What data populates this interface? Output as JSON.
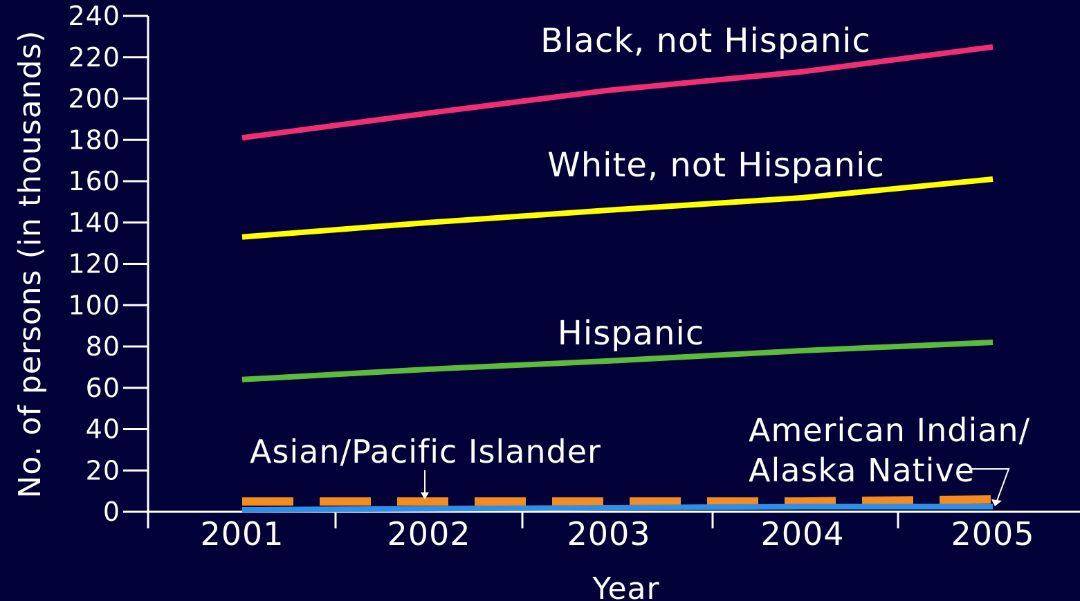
{
  "chart_data": {
    "type": "line",
    "xlabel": "Year",
    "ylabel": "No. of persons (in thousands)",
    "ylim": [
      0,
      240
    ],
    "y_ticks": [
      "0",
      "20",
      "40",
      "60",
      "80",
      "100",
      "120",
      "140",
      "160",
      "180",
      "200",
      "220",
      "240"
    ],
    "x": [
      "2001",
      "2002",
      "2003",
      "2004",
      "2005"
    ],
    "series": [
      {
        "name": "Black, not Hispanic",
        "values": [
          181,
          193,
          204,
          213,
          225
        ],
        "color": "#ef2f72",
        "style": "solid"
      },
      {
        "name": "White, not Hispanic",
        "values": [
          133,
          140,
          146,
          152,
          161
        ],
        "color": "#ffff00",
        "style": "solid"
      },
      {
        "name": "Hispanic",
        "values": [
          64,
          69,
          73,
          78,
          82
        ],
        "color": "#5dbb3b",
        "style": "solid"
      },
      {
        "name": "Asian/Pacific Islander",
        "values": [
          5,
          5,
          5,
          5,
          6
        ],
        "color": "#f58a1f",
        "style": "dashed"
      },
      {
        "name": "American Indian/ Alaska Native",
        "values": [
          1,
          1.5,
          2,
          2.5,
          2.5
        ],
        "color": "#2f8fe8",
        "style": "solid"
      }
    ],
    "labels": {
      "black": "Black, not Hispanic",
      "white": "White, not Hispanic",
      "hispanic": "Hispanic",
      "asian": "Asian/Pacific Islander",
      "native_line1": "American Indian/",
      "native_line2": "Alaska Native"
    },
    "grid": false,
    "legend": "inline labels"
  }
}
